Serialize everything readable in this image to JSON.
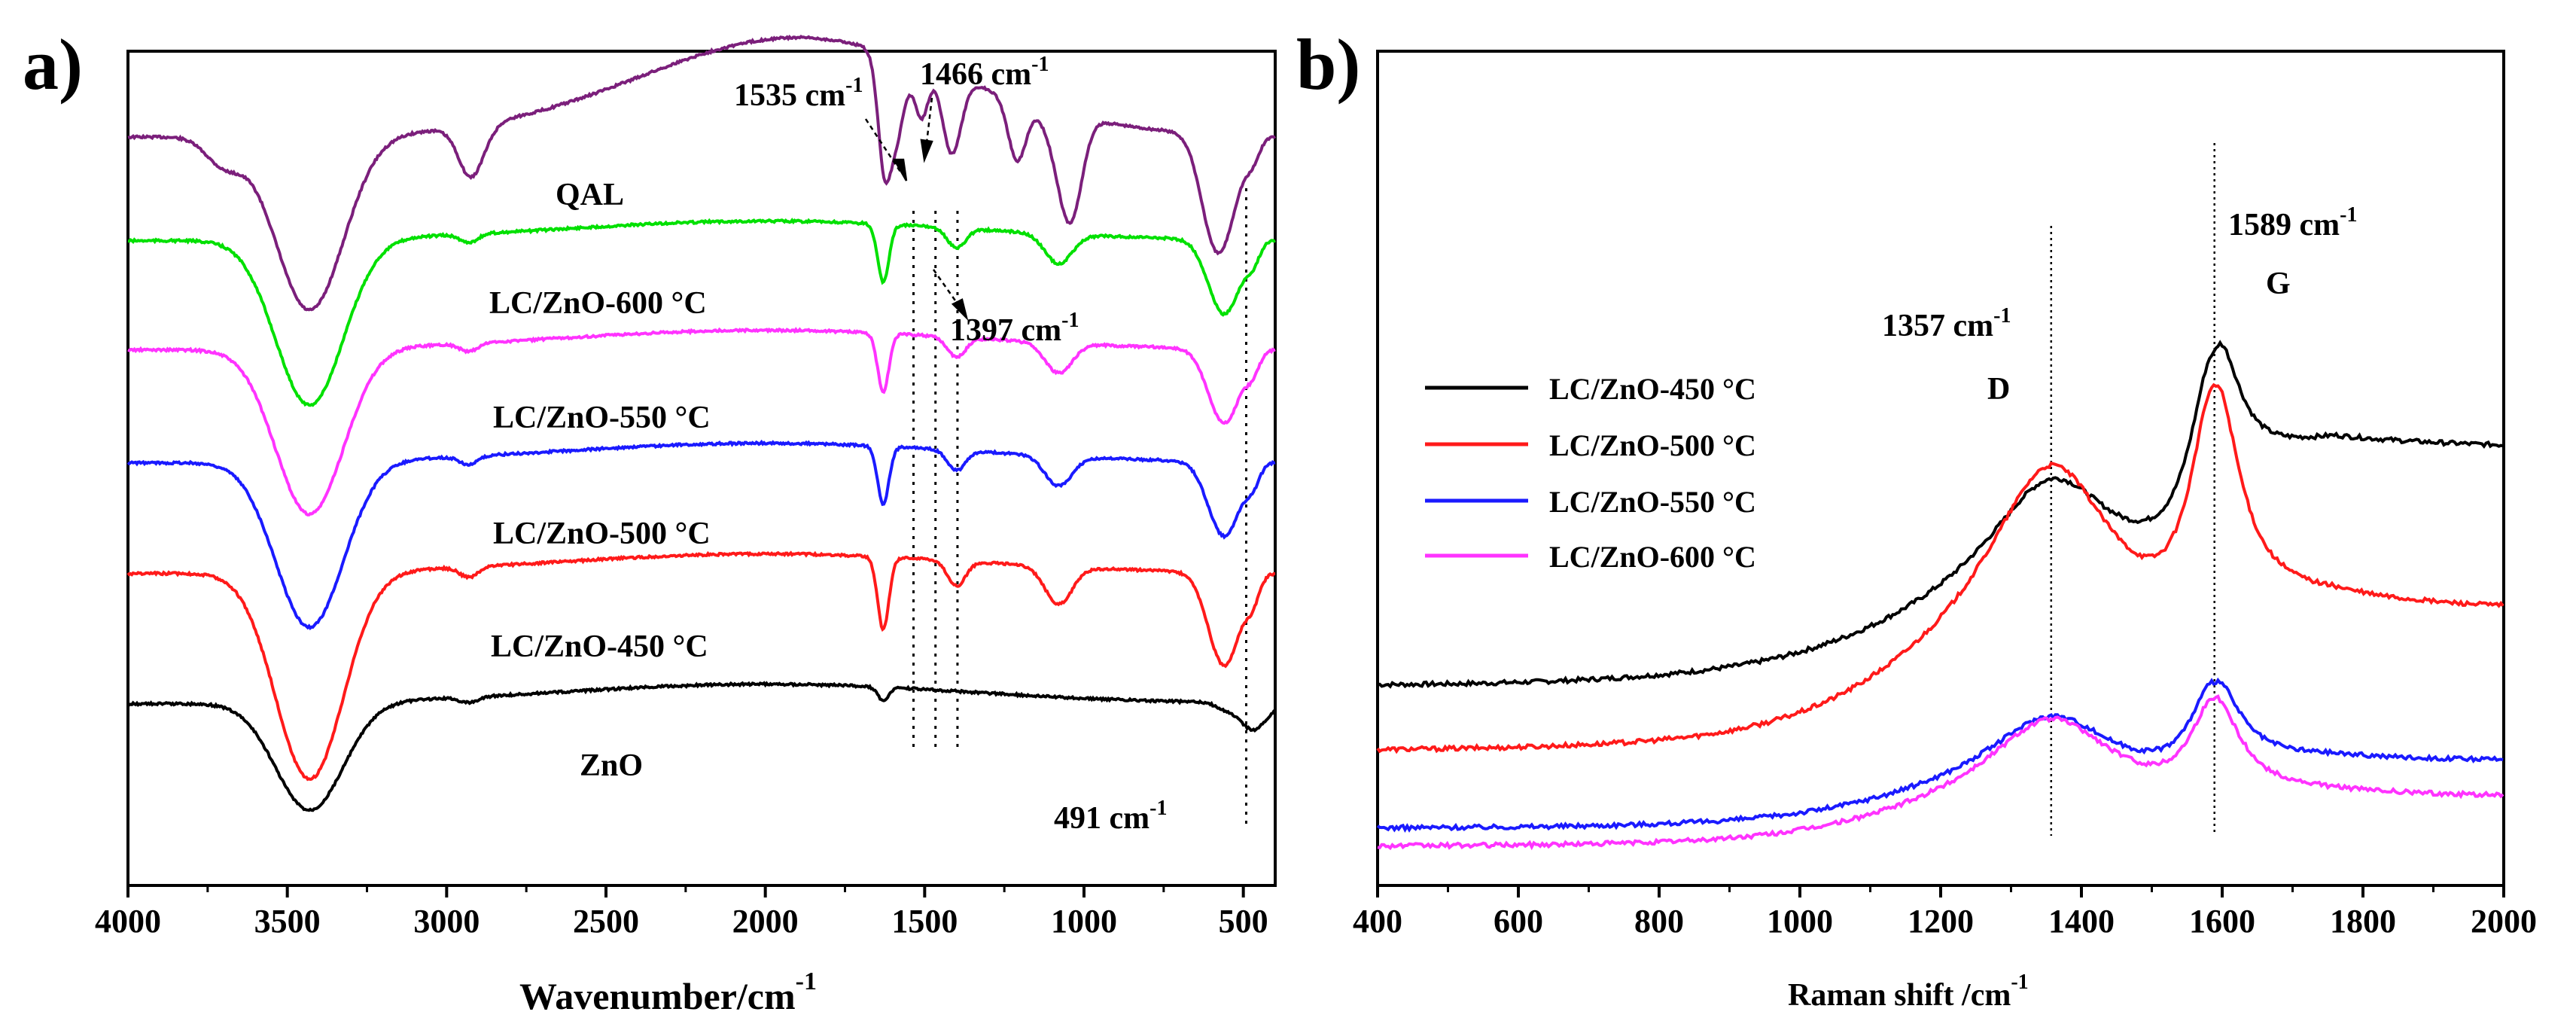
{
  "chart_data": [
    {
      "panel": "a)",
      "type": "line",
      "xlabel": "Wavenumber/cm",
      "xlabel_sup": "-1",
      "xlim": [
        4000,
        400
      ],
      "xticks": [
        "4000",
        "3500",
        "3000",
        "2500",
        "2000",
        "1500",
        "1000",
        "500"
      ],
      "xtick_values": [
        4000,
        3500,
        3000,
        2500,
        2000,
        1500,
        1000,
        500
      ],
      "y_ticks_shown": false,
      "series": [
        {
          "name": "QAL",
          "color": "#7b1f7b",
          "offset": 5,
          "depth": 1.05,
          "shape": "qal"
        },
        {
          "name": "LC/ZnO-600 °C",
          "color": "#00e000",
          "offset": 4,
          "depth": 1.0,
          "shape": "lc"
        },
        {
          "name": "LC/ZnO-550 °C",
          "color": "#ff33ff",
          "offset": 3,
          "depth": 1.0,
          "shape": "lc"
        },
        {
          "name": "LC/ZnO-500 °C",
          "color": "#1a1aff",
          "offset": 2,
          "depth": 1.0,
          "shape": "lc"
        },
        {
          "name": "LC/ZnO-450 °C",
          "color": "#ff1a1a",
          "offset": 1,
          "depth": 1.25,
          "shape": "lc"
        },
        {
          "name": "ZnO",
          "color": "#000000",
          "offset": 0,
          "depth": 0.65,
          "shape": "zno"
        }
      ],
      "vlines": [
        1535,
        1466,
        1397,
        491
      ],
      "annotations": [
        {
          "text": "1535 cm",
          "sup": "-1"
        },
        {
          "text": "1466 cm",
          "sup": "-1"
        },
        {
          "text": "1397 cm",
          "sup": "-1"
        },
        {
          "text": "491 cm",
          "sup": "-1"
        }
      ]
    },
    {
      "panel": "b)",
      "type": "line",
      "xlabel": "Raman shift /cm",
      "xlabel_sup": "-1",
      "xlim": [
        400,
        2000
      ],
      "xticks": [
        "400",
        "600",
        "800",
        "1000",
        "1200",
        "1400",
        "1600",
        "1800",
        "2000"
      ],
      "xtick_values": [
        400,
        600,
        800,
        1000,
        1200,
        1400,
        1600,
        1800,
        2000
      ],
      "y_ticks_shown": false,
      "series": [
        {
          "name": "LC/ZnO-450 °C",
          "color": "#000000",
          "base_start": 0.22,
          "base_end": 0.56,
          "d_peak": 0.44,
          "g_peak": 0.67
        },
        {
          "name": "LC/ZnO-500 °C",
          "color": "#ff1a1a",
          "base_start": 0.13,
          "base_end": 0.33,
          "d_peak": 0.48,
          "g_peak": 0.65
        },
        {
          "name": "LC/ZnO-550 °C",
          "color": "#1a1aff",
          "base_start": 0.025,
          "base_end": 0.12,
          "d_peak": 0.16,
          "g_peak": 0.23
        },
        {
          "name": "LC/ZnO-600 °C",
          "color": "#ff33ff",
          "base_start": 0.0,
          "base_end": 0.07,
          "d_peak": 0.16,
          "g_peak": 0.21
        }
      ],
      "vlines": [
        1357,
        1589
      ],
      "annotations": [
        {
          "text": "1589 cm",
          "sup": "-1"
        },
        {
          "text": "G",
          "sup": ""
        },
        {
          "text": "1357 cm",
          "sup": "-1"
        },
        {
          "text": "D",
          "sup": ""
        }
      ],
      "legend_position": "center-left"
    }
  ]
}
